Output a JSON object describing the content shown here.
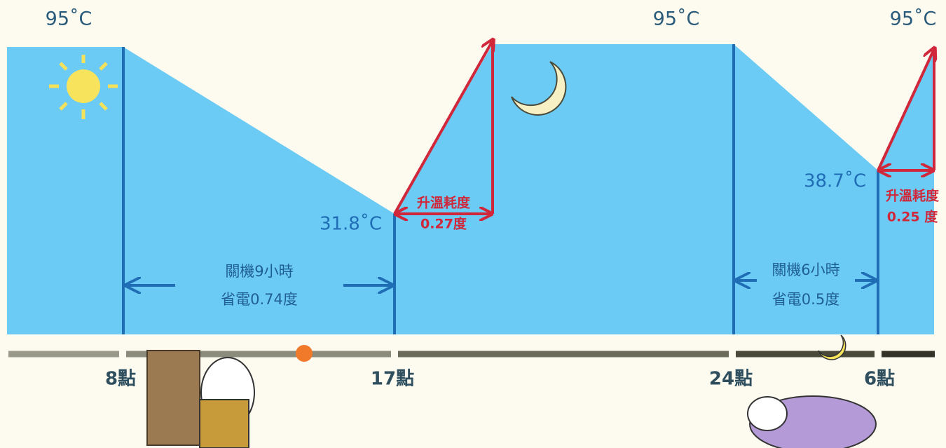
{
  "top_labels": [
    "95˚C",
    "95˚C",
    "95˚C"
  ],
  "low_labels": [
    "31.8˚C",
    "38.7˚C"
  ],
  "reheat_notes": [
    {
      "title": "升溫耗度",
      "value": "0.27度"
    },
    {
      "title": "升溫耗度",
      "value": "0.25 度"
    }
  ],
  "off_notes": [
    {
      "title": "關機9小時",
      "value": "省電0.74度"
    },
    {
      "title": "關機6小時",
      "value": "省電0.5度"
    }
  ],
  "time_labels": [
    "8點",
    "17點",
    "24點",
    "6點"
  ]
}
